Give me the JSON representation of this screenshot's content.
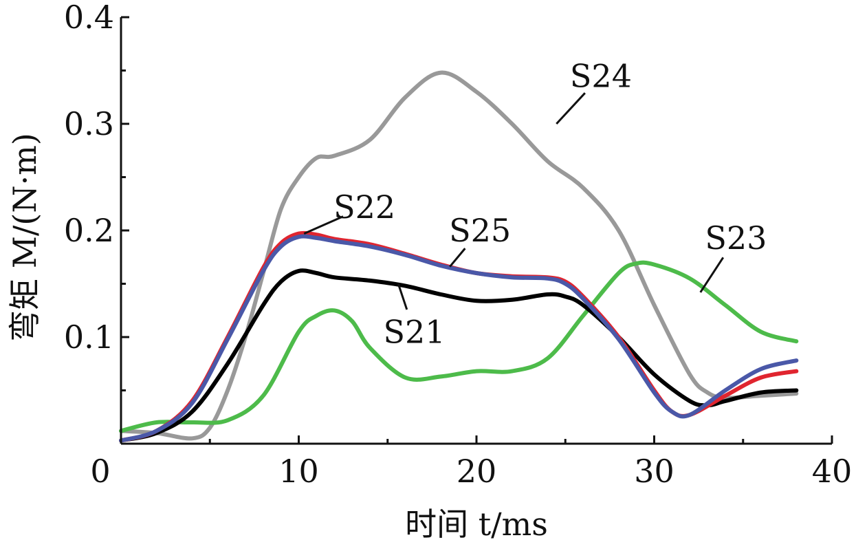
{
  "chart_data": {
    "type": "line",
    "xlabel": "时间 t/ms",
    "ylabel": "弯矩 M/(N·m)",
    "xlim": [
      0,
      40
    ],
    "ylim": [
      0,
      0.4
    ],
    "xticks": [
      0,
      10,
      20,
      30,
      40
    ],
    "xtick_labels": [
      "0",
      "10",
      "20",
      "30",
      "40"
    ],
    "yticks": [
      0.1,
      0.2,
      0.3,
      0.4
    ],
    "ytick_labels": [
      "0.1",
      "0.2",
      "0.3",
      "0.4"
    ],
    "grid": false,
    "series": [
      {
        "name": "S21",
        "color": "#000000",
        "x": [
          0,
          2,
          4,
          6,
          8,
          9,
          10,
          11,
          12,
          14,
          16,
          18,
          20,
          22,
          24,
          25,
          26,
          28,
          30,
          32,
          33,
          34,
          36,
          38
        ],
        "y": [
          0.003,
          0.01,
          0.03,
          0.075,
          0.13,
          0.152,
          0.162,
          0.16,
          0.156,
          0.153,
          0.148,
          0.14,
          0.134,
          0.135,
          0.14,
          0.138,
          0.13,
          0.1,
          0.065,
          0.04,
          0.036,
          0.04,
          0.048,
          0.05
        ]
      },
      {
        "name": "S22",
        "color": "#e0252f",
        "x": [
          0,
          2,
          4,
          6,
          8,
          9,
          10,
          11,
          12,
          14,
          16,
          18,
          20,
          22,
          24,
          25,
          26,
          28,
          30,
          31,
          32,
          34,
          36,
          38
        ],
        "y": [
          0.003,
          0.012,
          0.04,
          0.1,
          0.165,
          0.188,
          0.197,
          0.196,
          0.192,
          0.187,
          0.178,
          0.168,
          0.16,
          0.157,
          0.156,
          0.152,
          0.138,
          0.1,
          0.05,
          0.03,
          0.027,
          0.045,
          0.062,
          0.068
        ]
      },
      {
        "name": "S23",
        "color": "#4dbb4a",
        "x": [
          0,
          2,
          4,
          6,
          8,
          10,
          11,
          12,
          13,
          14,
          16,
          18,
          20,
          22,
          24,
          26,
          28,
          29,
          30,
          32,
          34,
          36,
          38
        ],
        "y": [
          0.012,
          0.02,
          0.02,
          0.022,
          0.045,
          0.105,
          0.12,
          0.125,
          0.115,
          0.09,
          0.062,
          0.063,
          0.068,
          0.068,
          0.08,
          0.12,
          0.16,
          0.169,
          0.168,
          0.155,
          0.13,
          0.105,
          0.096
        ]
      },
      {
        "name": "S24",
        "color": "#999999",
        "x": [
          0,
          2,
          4,
          5,
          6,
          7,
          8,
          9,
          10,
          11,
          12,
          14,
          16,
          18,
          20,
          22,
          24,
          26,
          28,
          30,
          32,
          33,
          34,
          36,
          38
        ],
        "y": [
          0.012,
          0.01,
          0.005,
          0.015,
          0.05,
          0.1,
          0.16,
          0.22,
          0.25,
          0.268,
          0.27,
          0.285,
          0.325,
          0.348,
          0.33,
          0.3,
          0.265,
          0.24,
          0.2,
          0.13,
          0.065,
          0.048,
          0.043,
          0.045,
          0.047
        ]
      },
      {
        "name": "S25",
        "color": "#4a58a8",
        "x": [
          0,
          2,
          4,
          6,
          8,
          9,
          10,
          11,
          12,
          14,
          16,
          18,
          20,
          22,
          24,
          25,
          26,
          28,
          30,
          31,
          32,
          34,
          36,
          38
        ],
        "y": [
          0.003,
          0.012,
          0.038,
          0.098,
          0.162,
          0.185,
          0.194,
          0.193,
          0.19,
          0.185,
          0.177,
          0.167,
          0.16,
          0.156,
          0.155,
          0.15,
          0.136,
          0.098,
          0.048,
          0.03,
          0.027,
          0.05,
          0.07,
          0.078
        ]
      }
    ],
    "annotations": [
      {
        "text": "S24",
        "series": "S24",
        "at": [
          24.5,
          0.3
        ],
        "label_at": [
          27,
          0.345
        ]
      },
      {
        "text": "S22",
        "series": "S22",
        "at": [
          10.3,
          0.197
        ],
        "label_at": [
          13.7,
          0.222
        ]
      },
      {
        "text": "S25",
        "series": "S25",
        "at": [
          18.5,
          0.166
        ],
        "label_at": [
          20.2,
          0.2
        ]
      },
      {
        "text": "S23",
        "series": "S23",
        "at": [
          32.6,
          0.142
        ],
        "label_at": [
          34.6,
          0.193
        ]
      },
      {
        "text": "S21",
        "series": "S21",
        "at": [
          15.6,
          0.15
        ],
        "label_at": [
          16.5,
          0.105
        ]
      }
    ]
  }
}
